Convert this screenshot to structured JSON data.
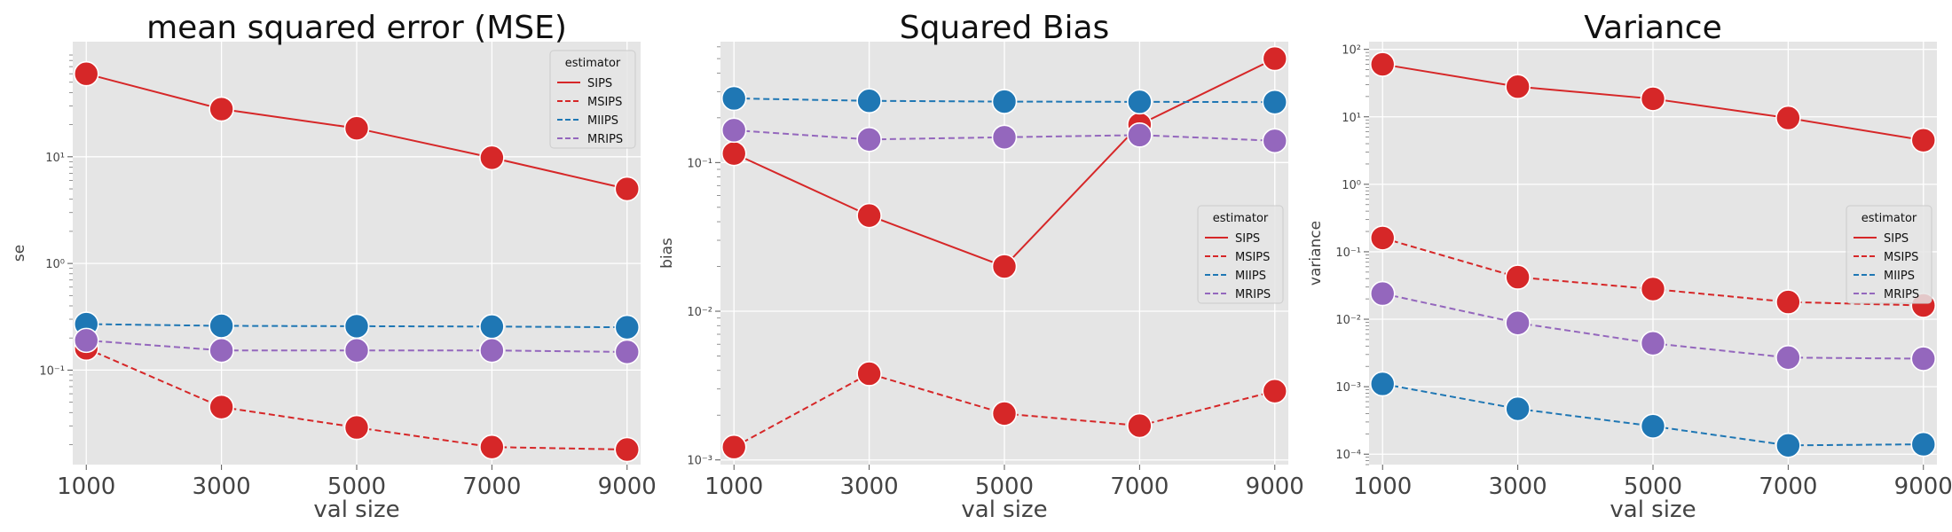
{
  "colors": {
    "SIPS": "#d62728",
    "MSIPS": "#d62728",
    "MIIPS": "#1f77b4",
    "MRIPS": "#9467bd",
    "panel_bg": "#e5e5e5",
    "grid": "#ffffff"
  },
  "chart_data": [
    {
      "type": "line",
      "title": "mean squared error (MSE)",
      "xlabel": "val size",
      "ylabel": "se",
      "yscale": "log",
      "ylim": [
        0.013,
        120
      ],
      "x": [
        1000,
        3000,
        5000,
        7000,
        9000
      ],
      "x_tick_labels": [
        "1000",
        "3000",
        "5000",
        "7000",
        "9000"
      ],
      "y_ticks": [
        0.1,
        1,
        10
      ],
      "y_tick_labels": [
        "10⁻¹",
        "10⁰",
        "10¹"
      ],
      "grid": true,
      "legend": {
        "title": "estimator",
        "placement": "top-right"
      },
      "series": [
        {
          "name": "SIPS",
          "style": "solid",
          "values": [
            60,
            28,
            18.5,
            9.8,
            5.0
          ]
        },
        {
          "name": "MSIPS",
          "style": "dashed",
          "values": [
            0.16,
            0.045,
            0.029,
            0.019,
            0.018
          ]
        },
        {
          "name": "MIIPS",
          "style": "dashed",
          "values": [
            0.27,
            0.26,
            0.258,
            0.256,
            0.252
          ]
        },
        {
          "name": "MRIPS",
          "style": "dashed",
          "values": [
            0.19,
            0.153,
            0.153,
            0.153,
            0.148
          ]
        }
      ]
    },
    {
      "type": "line",
      "title": "Squared Bias",
      "xlabel": "val size",
      "ylabel": "bias",
      "yscale": "log",
      "ylim": [
        0.00093,
        0.65
      ],
      "x": [
        1000,
        3000,
        5000,
        7000,
        9000
      ],
      "x_tick_labels": [
        "1000",
        "3000",
        "5000",
        "7000",
        "9000"
      ],
      "y_ticks": [
        0.001,
        0.01,
        0.1
      ],
      "y_tick_labels": [
        "10⁻³",
        "10⁻²",
        "10⁻¹"
      ],
      "grid": true,
      "legend": {
        "title": "estimator",
        "placement": "center-right"
      },
      "series": [
        {
          "name": "SIPS",
          "style": "solid",
          "values": [
            0.115,
            0.044,
            0.02,
            0.18,
            0.5
          ]
        },
        {
          "name": "MSIPS",
          "style": "dashed",
          "values": [
            0.00122,
            0.0038,
            0.00205,
            0.0017,
            0.0029
          ]
        },
        {
          "name": "MIIPS",
          "style": "dashed",
          "values": [
            0.27,
            0.26,
            0.257,
            0.256,
            0.255
          ]
        },
        {
          "name": "MRIPS",
          "style": "dashed",
          "values": [
            0.165,
            0.143,
            0.148,
            0.153,
            0.14
          ]
        }
      ]
    },
    {
      "type": "line",
      "title": "Variance",
      "xlabel": "val size",
      "ylabel": "variance",
      "yscale": "log",
      "ylim": [
        7e-05,
        130
      ],
      "x": [
        1000,
        3000,
        5000,
        7000,
        9000
      ],
      "x_tick_labels": [
        "1000",
        "3000",
        "5000",
        "7000",
        "9000"
      ],
      "y_ticks": [
        0.0001,
        0.001,
        0.01,
        0.1,
        1,
        10,
        100
      ],
      "y_tick_labels": [
        "10⁻⁴",
        "10⁻³",
        "10⁻²",
        "10⁻¹",
        "10⁰",
        "10¹",
        "10²"
      ],
      "grid": true,
      "legend": {
        "title": "estimator",
        "placement": "center-right"
      },
      "series": [
        {
          "name": "SIPS",
          "style": "solid",
          "values": [
            60,
            28,
            18.5,
            9.6,
            4.5
          ]
        },
        {
          "name": "MSIPS",
          "style": "dashed",
          "values": [
            0.16,
            0.042,
            0.028,
            0.018,
            0.016
          ]
        },
        {
          "name": "MIIPS",
          "style": "dashed",
          "values": [
            0.0011,
            0.00047,
            0.00026,
            0.000135,
            0.00014
          ]
        },
        {
          "name": "MRIPS",
          "style": "dashed",
          "values": [
            0.024,
            0.0088,
            0.0044,
            0.0027,
            0.0026
          ]
        }
      ]
    }
  ]
}
